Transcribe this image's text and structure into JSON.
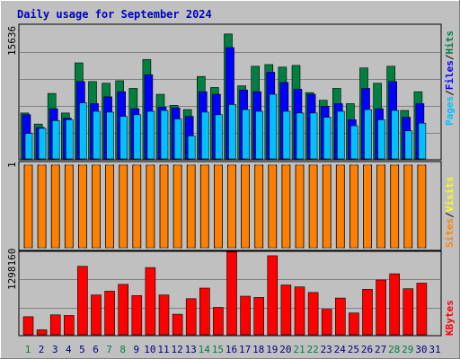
{
  "title": "Daily usage for September 2024",
  "colors": {
    "background": "#c0c0c0",
    "hits": "#008040",
    "files": "#0000ff",
    "pages": "#00c0ff",
    "visits": "#ff8000",
    "sites": "#ffff00",
    "kbytes": "#ff0000",
    "weekday_label": "#000080",
    "weekend_label": "#008040",
    "title": "#0000c0"
  },
  "chart_data": [
    {
      "type": "bar",
      "panel": "top",
      "y_max_label": "15636",
      "ylim": [
        0,
        15636
      ],
      "legend_right": [
        "Hits",
        "/",
        "Files",
        "/",
        "Pages"
      ],
      "categories": [
        "1",
        "2",
        "3",
        "4",
        "5",
        "6",
        "7",
        "8",
        "9",
        "10",
        "11",
        "12",
        "13",
        "14",
        "15",
        "16",
        "17",
        "18",
        "19",
        "20",
        "21",
        "22",
        "23",
        "24",
        "25",
        "26",
        "27",
        "28",
        "29",
        "30",
        "31"
      ],
      "series": [
        {
          "name": "Hits",
          "values": [
            5400,
            4100,
            7700,
            5400,
            11300,
            9100,
            8900,
            9200,
            8300,
            11700,
            7600,
            6300,
            5800,
            9700,
            8400,
            14700,
            8600,
            10900,
            11100,
            10800,
            11000,
            7800,
            6900,
            8300,
            6500,
            10700,
            8900,
            10900,
            5700,
            7900,
            0
          ]
        },
        {
          "name": "Files",
          "values": [
            5200,
            3700,
            5900,
            4800,
            9100,
            6500,
            7300,
            7900,
            5900,
            9900,
            6100,
            6000,
            5000,
            7900,
            7600,
            13100,
            8100,
            7900,
            10200,
            9000,
            8200,
            7600,
            6200,
            6500,
            4600,
            8300,
            5900,
            9100,
            4900,
            6500,
            0
          ]
        },
        {
          "name": "Pages",
          "values": [
            3000,
            3600,
            4500,
            4600,
            6600,
            5600,
            5500,
            5000,
            5200,
            5600,
            5700,
            4700,
            2700,
            5500,
            5200,
            6400,
            5800,
            5600,
            7600,
            5600,
            5400,
            5400,
            4900,
            5600,
            3900,
            5800,
            4600,
            5700,
            3300,
            4200,
            0
          ]
        }
      ]
    },
    {
      "type": "bar",
      "panel": "middle",
      "y_max_label": "1",
      "ylim": [
        0,
        1
      ],
      "legend_right": [
        "Visits",
        "/",
        "Sites"
      ],
      "categories": [
        "1",
        "2",
        "3",
        "4",
        "5",
        "6",
        "7",
        "8",
        "9",
        "10",
        "11",
        "12",
        "13",
        "14",
        "15",
        "16",
        "17",
        "18",
        "19",
        "20",
        "21",
        "22",
        "23",
        "24",
        "25",
        "26",
        "27",
        "28",
        "29",
        "30",
        "31"
      ],
      "series": [
        {
          "name": "Visits",
          "values": [
            1,
            1,
            1,
            1,
            1,
            1,
            1,
            1,
            1,
            1,
            1,
            1,
            1,
            1,
            1,
            1,
            1,
            1,
            1,
            1,
            1,
            1,
            1,
            1,
            1,
            1,
            1,
            1,
            1,
            1,
            0
          ]
        },
        {
          "name": "Sites",
          "values": [
            1,
            1,
            1,
            1,
            1,
            1,
            1,
            1,
            1,
            1,
            1,
            1,
            1,
            1,
            1,
            1,
            1,
            1,
            1,
            1,
            1,
            1,
            1,
            1,
            1,
            1,
            1,
            1,
            1,
            1,
            0
          ]
        }
      ]
    },
    {
      "type": "bar",
      "panel": "bottom",
      "y_max_label": "1298160",
      "ylim": [
        0,
        1298160
      ],
      "legend_right": [
        "KBytes"
      ],
      "categories": [
        "1",
        "2",
        "3",
        "4",
        "5",
        "6",
        "7",
        "8",
        "9",
        "10",
        "11",
        "12",
        "13",
        "14",
        "15",
        "16",
        "17",
        "18",
        "19",
        "20",
        "21",
        "22",
        "23",
        "24",
        "25",
        "26",
        "27",
        "28",
        "29",
        "30",
        "31"
      ],
      "series": [
        {
          "name": "KBytes",
          "values": [
            290000,
            80000,
            320000,
            310000,
            1100000,
            640000,
            700000,
            810000,
            630000,
            1080000,
            640000,
            330000,
            580000,
            750000,
            440000,
            1330000,
            620000,
            600000,
            1270000,
            800000,
            770000,
            680000,
            410000,
            590000,
            350000,
            730000,
            880000,
            980000,
            740000,
            830000,
            0
          ]
        }
      ]
    }
  ],
  "x_labels": [
    {
      "text": "1",
      "weekend": true
    },
    {
      "text": "2",
      "weekend": false
    },
    {
      "text": "3",
      "weekend": false
    },
    {
      "text": "4",
      "weekend": false
    },
    {
      "text": "5",
      "weekend": false
    },
    {
      "text": "6",
      "weekend": false
    },
    {
      "text": "7",
      "weekend": true
    },
    {
      "text": "8",
      "weekend": true
    },
    {
      "text": "9",
      "weekend": false
    },
    {
      "text": "10",
      "weekend": false
    },
    {
      "text": "11",
      "weekend": false
    },
    {
      "text": "12",
      "weekend": false
    },
    {
      "text": "13",
      "weekend": false
    },
    {
      "text": "14",
      "weekend": true
    },
    {
      "text": "15",
      "weekend": true
    },
    {
      "text": "16",
      "weekend": false
    },
    {
      "text": "17",
      "weekend": false
    },
    {
      "text": "18",
      "weekend": false
    },
    {
      "text": "19",
      "weekend": false
    },
    {
      "text": "20",
      "weekend": false
    },
    {
      "text": "21",
      "weekend": true
    },
    {
      "text": "22",
      "weekend": true
    },
    {
      "text": "23",
      "weekend": false
    },
    {
      "text": "24",
      "weekend": false
    },
    {
      "text": "25",
      "weekend": false
    },
    {
      "text": "26",
      "weekend": false
    },
    {
      "text": "27",
      "weekend": false
    },
    {
      "text": "28",
      "weekend": true
    },
    {
      "text": "29",
      "weekend": true
    },
    {
      "text": "30",
      "weekend": false
    },
    {
      "text": "31",
      "weekend": false
    }
  ]
}
